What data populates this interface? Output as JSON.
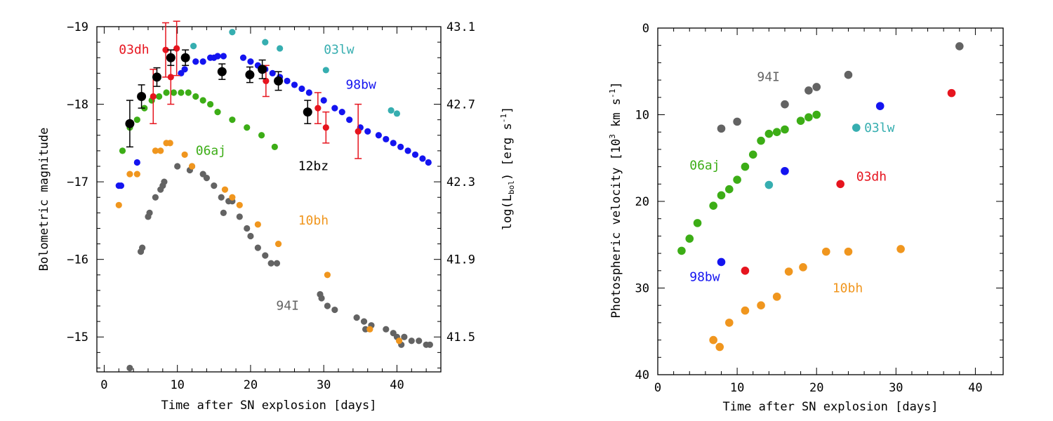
{
  "chart_data": [
    {
      "type": "scatter",
      "xlabel": "Time after SN explosion [days]",
      "ylabel": "Bolometric magnitude",
      "ylabel_right_prefix": "log(L",
      "ylabel_right_sub": "bol",
      "ylabel_right_suffix": ") [erg s",
      "ylabel_right_sup": "-1",
      "ylabel_right_end": "]",
      "xlim": [
        -1,
        46
      ],
      "ylim": [
        -19,
        -14.55
      ],
      "x_ticks": [
        0,
        10,
        20,
        30,
        40
      ],
      "x_tick_labels": [
        "0",
        "10",
        "20",
        "30",
        "40"
      ],
      "y_ticks": [
        -19,
        -18,
        -17,
        -16,
        -15
      ],
      "y_tick_labels": [
        "−19",
        "−18",
        "−17",
        "−16",
        "−15"
      ],
      "right_ticks": [
        -19,
        -18,
        -17,
        -16,
        -15
      ],
      "right_tick_labels": [
        "43.1",
        "42.7",
        "42.3",
        "41.9",
        "41.5"
      ],
      "series": [
        {
          "name": "94I",
          "color": "#636363",
          "label": "94I",
          "label_at": [
            23.5,
            -15.35
          ],
          "points": [
            [
              3.5,
              -14.6
            ],
            [
              5,
              -16.1
            ],
            [
              5.2,
              -16.15
            ],
            [
              6,
              -16.55
            ],
            [
              6.2,
              -16.6
            ],
            [
              7,
              -16.8
            ],
            [
              7.7,
              -16.9
            ],
            [
              8,
              -16.95
            ],
            [
              8.2,
              -17
            ],
            [
              10,
              -17.2
            ],
            [
              11.7,
              -17.15
            ],
            [
              12,
              -17.2
            ],
            [
              13.5,
              -17.1
            ],
            [
              14,
              -17.05
            ],
            [
              15,
              -16.95
            ],
            [
              16,
              -16.8
            ],
            [
              16.3,
              -16.6
            ],
            [
              17,
              -16.75
            ],
            [
              17.5,
              -16.75
            ],
            [
              18.5,
              -16.55
            ],
            [
              19.5,
              -16.4
            ],
            [
              20,
              -16.3
            ],
            [
              21,
              -16.15
            ],
            [
              22,
              -16.05
            ],
            [
              22.8,
              -15.95
            ],
            [
              23.6,
              -15.95
            ],
            [
              29.5,
              -15.55
            ],
            [
              29.7,
              -15.5
            ],
            [
              30.5,
              -15.4
            ],
            [
              31.5,
              -15.35
            ],
            [
              34.5,
              -15.25
            ],
            [
              35.5,
              -15.2
            ],
            [
              35.7,
              -15.1
            ],
            [
              36.5,
              -15.15
            ],
            [
              38.5,
              -15.1
            ],
            [
              39.5,
              -15.05
            ],
            [
              40,
              -15
            ],
            [
              40.6,
              -14.9
            ],
            [
              41,
              -15
            ],
            [
              42,
              -14.95
            ],
            [
              43,
              -14.95
            ],
            [
              44,
              -14.9
            ],
            [
              44.5,
              -14.9
            ]
          ]
        },
        {
          "name": "10bh",
          "color": "#f0961e",
          "label": "10bh",
          "label_at": [
            26.5,
            -16.45
          ],
          "points": [
            [
              2,
              -16.7
            ],
            [
              3.5,
              -17.1
            ],
            [
              4.5,
              -17.1
            ],
            [
              7,
              -17.4
            ],
            [
              7.7,
              -17.4
            ],
            [
              8.5,
              -17.5
            ],
            [
              9,
              -17.5
            ],
            [
              11,
              -17.35
            ],
            [
              12,
              -17.2
            ],
            [
              16.5,
              -16.9
            ],
            [
              17.5,
              -16.8
            ],
            [
              18.5,
              -16.7
            ],
            [
              21,
              -16.45
            ],
            [
              23.8,
              -16.2
            ],
            [
              30.5,
              -15.8
            ],
            [
              36.3,
              -15.1
            ],
            [
              40.3,
              -14.95
            ]
          ]
        },
        {
          "name": "06aj",
          "color": "#3cad16",
          "label": "06aj",
          "label_at": [
            12.5,
            -17.35
          ],
          "points": [
            [
              2.5,
              -17.4
            ],
            [
              3.5,
              -17.7
            ],
            [
              4.5,
              -17.8
            ],
            [
              5.5,
              -17.95
            ],
            [
              6.5,
              -18.05
            ],
            [
              7.5,
              -18.1
            ],
            [
              8.5,
              -18.15
            ],
            [
              9.5,
              -18.15
            ],
            [
              10.5,
              -18.15
            ],
            [
              11.5,
              -18.15
            ],
            [
              12.5,
              -18.1
            ],
            [
              13.5,
              -18.05
            ],
            [
              14.5,
              -18
            ],
            [
              15.5,
              -17.9
            ],
            [
              17.5,
              -17.8
            ],
            [
              19.5,
              -17.7
            ],
            [
              21.5,
              -17.6
            ],
            [
              23.3,
              -17.45
            ]
          ]
        },
        {
          "name": "98bw",
          "color": "#1414f0",
          "label": "98bw",
          "label_at": [
            33,
            -18.2
          ],
          "points": [
            [
              2,
              -16.95
            ],
            [
              2.3,
              -16.95
            ],
            [
              4.5,
              -17.25
            ],
            [
              10.5,
              -18.4
            ],
            [
              11,
              -18.45
            ],
            [
              12.5,
              -18.55
            ],
            [
              13.5,
              -18.55
            ],
            [
              14.5,
              -18.6
            ],
            [
              15,
              -18.6
            ],
            [
              15.5,
              -18.62
            ],
            [
              16.3,
              -18.62
            ],
            [
              19,
              -18.6
            ],
            [
              20,
              -18.55
            ],
            [
              21,
              -18.5
            ],
            [
              22,
              -18.45
            ],
            [
              23,
              -18.4
            ],
            [
              24,
              -18.35
            ],
            [
              25,
              -18.3
            ],
            [
              26,
              -18.25
            ],
            [
              27,
              -18.2
            ],
            [
              28,
              -18.15
            ],
            [
              30,
              -18.05
            ],
            [
              31.5,
              -17.95
            ],
            [
              32.5,
              -17.9
            ],
            [
              33.5,
              -17.8
            ],
            [
              35,
              -17.7
            ],
            [
              36,
              -17.65
            ],
            [
              37.5,
              -17.6
            ],
            [
              38.5,
              -17.55
            ],
            [
              39.5,
              -17.5
            ],
            [
              40.5,
              -17.45
            ],
            [
              41.5,
              -17.4
            ],
            [
              42.5,
              -17.35
            ],
            [
              43.5,
              -17.3
            ],
            [
              44.3,
              -17.25
            ]
          ]
        },
        {
          "name": "03lw",
          "color": "#36aeb0",
          "label": "03lw",
          "label_at": [
            30,
            -18.65
          ],
          "points": [
            [
              12.2,
              -18.75
            ],
            [
              17.5,
              -18.93
            ],
            [
              22,
              -18.8
            ],
            [
              24,
              -18.72
            ],
            [
              30.3,
              -18.44
            ],
            [
              39.2,
              -17.92
            ],
            [
              40,
              -17.88
            ]
          ]
        },
        {
          "name": "03dh",
          "color": "#e6141e",
          "label": "03dh",
          "label_at": [
            2,
            -18.65
          ],
          "points": [
            [
              6.7,
              -18.1,
              0.35
            ],
            [
              8.4,
              -18.7,
              0.35
            ],
            [
              9.1,
              -18.35,
              0.35
            ],
            [
              9.9,
              -18.72,
              0.35
            ],
            [
              22.1,
              -18.3,
              0.2
            ],
            [
              29.2,
              -17.95,
              0.2
            ],
            [
              30.3,
              -17.7,
              0.2
            ],
            [
              34.7,
              -17.65,
              0.35
            ]
          ]
        },
        {
          "name": "12bz",
          "color": "#000000",
          "label": "12bz",
          "label_at": [
            26.5,
            -17.15
          ],
          "points": [
            [
              3.5,
              -17.75,
              0.3
            ],
            [
              5.1,
              -18.1,
              0.15
            ],
            [
              7.2,
              -18.35,
              0.12
            ],
            [
              9.1,
              -18.6,
              0.1
            ],
            [
              11.1,
              -18.6,
              0.1
            ],
            [
              16.1,
              -18.42,
              0.1
            ],
            [
              19.9,
              -18.38,
              0.1
            ],
            [
              21.6,
              -18.45,
              0.12
            ],
            [
              23.8,
              -18.3,
              0.12
            ],
            [
              27.8,
              -17.9,
              0.15
            ]
          ]
        }
      ]
    },
    {
      "type": "scatter",
      "xlabel": "Time after SN explosion [days]",
      "ylabel_prefix": "Photospheric velocity [10",
      "ylabel_sup1": "3",
      "ylabel_mid": " km s",
      "ylabel_sup2": "-1",
      "ylabel_end": "]",
      "xlim": [
        0,
        43.5
      ],
      "ylim": [
        0,
        40
      ],
      "x_ticks": [
        0,
        10,
        20,
        30,
        40
      ],
      "x_tick_labels": [
        "0",
        "10",
        "20",
        "30",
        "40"
      ],
      "y_ticks": [
        0,
        10,
        20,
        30,
        40
      ],
      "y_tick_labels": [
        "0",
        "10",
        "20",
        "30",
        "40"
      ],
      "series": [
        {
          "name": "10bh",
          "color": "#f0961e",
          "label": "10bh",
          "label_at": [
            22,
            30.5
          ],
          "points": [
            [
              7,
              36
            ],
            [
              7.8,
              36.8
            ],
            [
              9,
              34
            ],
            [
              11,
              32.6
            ],
            [
              13,
              32
            ],
            [
              15,
              31
            ],
            [
              16.5,
              28.1
            ],
            [
              18.3,
              27.6
            ],
            [
              21.2,
              25.8
            ],
            [
              24,
              25.8
            ],
            [
              30.6,
              25.5
            ]
          ]
        },
        {
          "name": "98bw",
          "color": "#1414f0",
          "label": "98bw",
          "label_at": [
            4,
            29.2
          ],
          "points": [
            [
              8,
              27
            ],
            [
              16,
              16.5
            ],
            [
              28,
              9
            ]
          ]
        },
        {
          "name": "03dh",
          "color": "#e6141e",
          "label": "03dh",
          "label_at": [
            25,
            17.6
          ],
          "points": [
            [
              11,
              28
            ],
            [
              23,
              18
            ],
            [
              37,
              7.5
            ]
          ]
        },
        {
          "name": "03lw",
          "color": "#36aeb0",
          "label": "03lw",
          "label_at": [
            26,
            12
          ],
          "points": [
            [
              14,
              18.1
            ],
            [
              25,
              11.5
            ]
          ]
        },
        {
          "name": "06aj",
          "color": "#3cad16",
          "label": "06aj",
          "label_at": [
            4,
            16.3
          ],
          "points": [
            [
              3,
              25.7
            ],
            [
              4,
              24.3
            ],
            [
              5,
              22.5
            ],
            [
              7,
              20.5
            ],
            [
              8,
              19.3
            ],
            [
              9,
              18.6
            ],
            [
              10,
              17.5
            ],
            [
              11,
              16
            ],
            [
              12,
              14.6
            ],
            [
              13,
              13
            ],
            [
              14,
              12.2
            ],
            [
              15,
              12
            ],
            [
              16,
              11.7
            ],
            [
              18,
              10.7
            ],
            [
              19,
              10.3
            ],
            [
              20,
              10
            ]
          ]
        },
        {
          "name": "94I",
          "color": "#636363",
          "label": "94I",
          "label_at": [
            12.5,
            6.1
          ],
          "points": [
            [
              8,
              11.6
            ],
            [
              10,
              10.8
            ],
            [
              16,
              8.8
            ],
            [
              19,
              7.2
            ],
            [
              20,
              6.8
            ],
            [
              24,
              5.4
            ],
            [
              38,
              2.1
            ]
          ]
        }
      ]
    }
  ]
}
